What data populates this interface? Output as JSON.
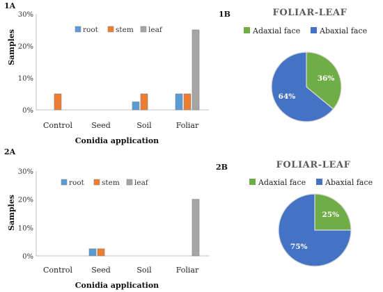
{
  "colors": {
    "root": "#5b9bd5",
    "stem": "#ed7d31",
    "leaf": "#a5a5a5",
    "adaxial": "#70ad47",
    "abaxial": "#4472c4",
    "axis": "#bfbfbf"
  },
  "chart_data": [
    {
      "id": "1A",
      "panel_label": "1A",
      "type": "bar",
      "categories": [
        "Control",
        "Seed",
        "Soil",
        "Foliar"
      ],
      "series": [
        {
          "name": "root",
          "values": [
            0,
            0,
            2.5,
            5
          ]
        },
        {
          "name": "stem",
          "values": [
            5,
            0,
            5,
            5
          ]
        },
        {
          "name": "leaf",
          "values": [
            0,
            0,
            0,
            25
          ]
        }
      ],
      "yticks": [
        "0%",
        "10%",
        "20%",
        "30%"
      ],
      "ylim": [
        0,
        30
      ],
      "ylabel": "Samples",
      "xlabel": "Conidia application",
      "legend_position": "top"
    },
    {
      "id": "1B",
      "panel_label": "1B",
      "type": "pie",
      "title": "FOLIAR-LEAF",
      "slices": [
        {
          "name": "Adaxial face",
          "value": 36,
          "label": "36%"
        },
        {
          "name": "Abaxial face",
          "value": 64,
          "label": "64%"
        }
      ],
      "legend_position": "top"
    },
    {
      "id": "2A",
      "panel_label": "2A",
      "type": "bar",
      "categories": [
        "Control",
        "Seed",
        "Soil",
        "Foliar"
      ],
      "series": [
        {
          "name": "root",
          "values": [
            0,
            2.5,
            0,
            0
          ]
        },
        {
          "name": "stem",
          "values": [
            0,
            2.5,
            0,
            0
          ]
        },
        {
          "name": "leaf",
          "values": [
            0,
            0,
            0,
            20
          ]
        }
      ],
      "yticks": [
        "0%",
        "10%",
        "20%",
        "30%"
      ],
      "ylim": [
        0,
        30
      ],
      "ylabel": "Samples",
      "xlabel": "Conidia application",
      "legend_position": "top"
    },
    {
      "id": "2B",
      "panel_label": "2B",
      "type": "pie",
      "title": "FOLIAR-LEAF",
      "slices": [
        {
          "name": "Adaxial face",
          "value": 25,
          "label": "25%"
        },
        {
          "name": "Abaxial face",
          "value": 75,
          "label": "75%"
        }
      ],
      "legend_position": "top"
    }
  ]
}
